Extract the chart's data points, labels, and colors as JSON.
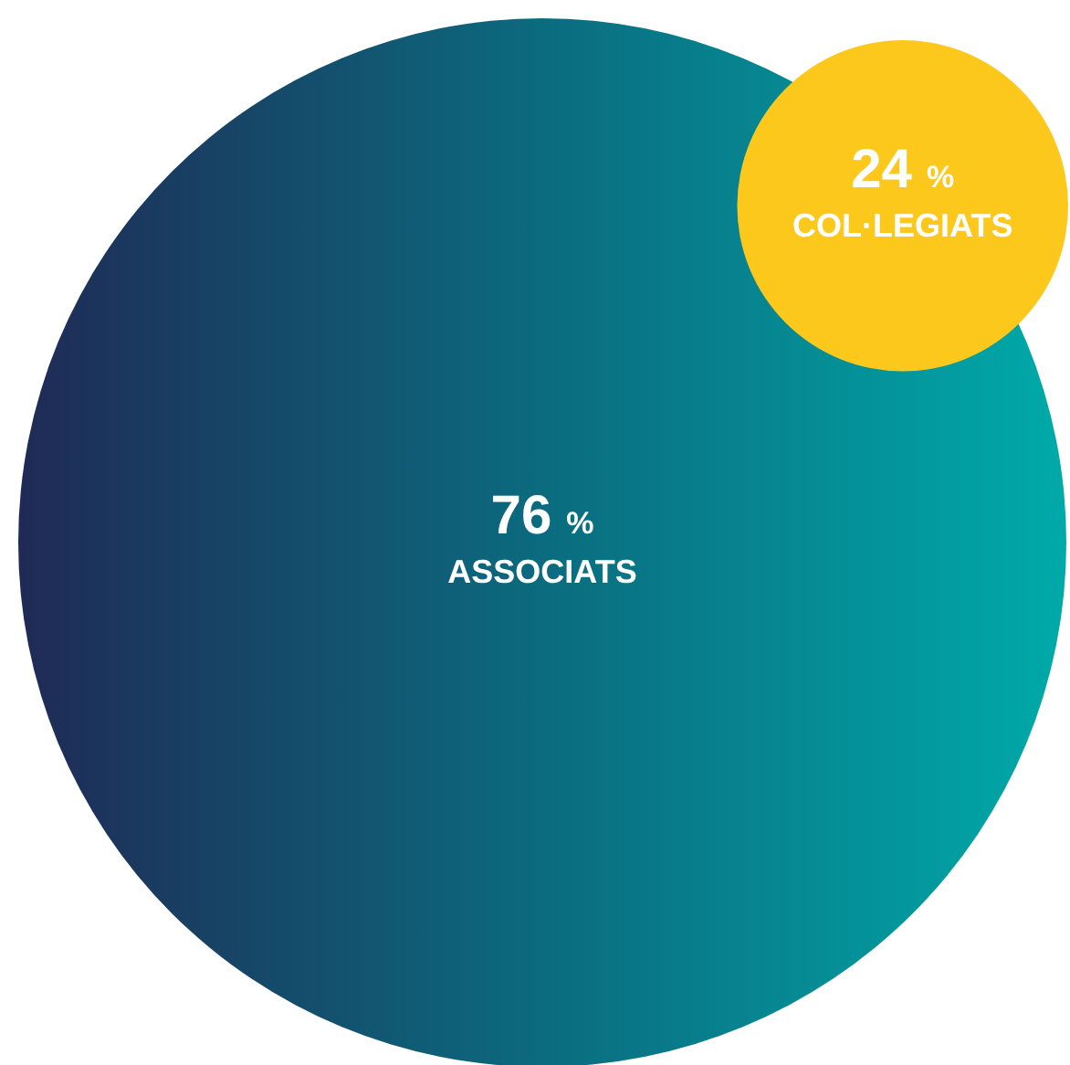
{
  "chart_data": {
    "type": "other",
    "categories": [
      "ASSOCIATS",
      "COL·LEGIATS"
    ],
    "values": [
      76,
      24
    ],
    "value_labels": [
      "76 %",
      "24 %"
    ],
    "colors": [
      "#0b6b7f",
      "#fcc81c"
    ]
  }
}
